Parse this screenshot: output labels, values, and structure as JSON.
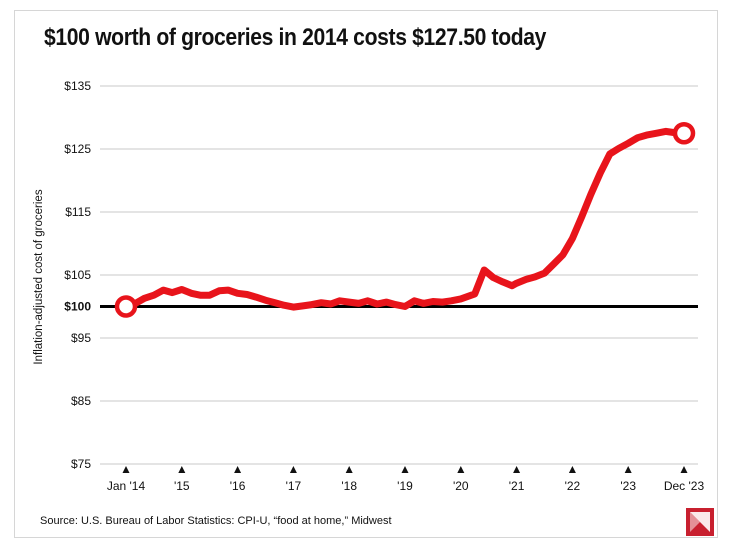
{
  "chart_data": {
    "type": "line",
    "title": "$100 worth of groceries in 2014 costs $127.50 today",
    "ylabel": "Inflation-adjusted cost of groceries",
    "xlabel": "",
    "source": "Source: U.S. Bureau of Labor Statistics: CPI-U, “food at home,” Midwest",
    "ylim": [
      75,
      135
    ],
    "y_ticks": [
      {
        "value": 135,
        "label": "$135",
        "bold": false
      },
      {
        "value": 125,
        "label": "$125",
        "bold": false
      },
      {
        "value": 115,
        "label": "$115",
        "bold": false
      },
      {
        "value": 105,
        "label": "$105",
        "bold": false
      },
      {
        "value": 100,
        "label": "$100",
        "bold": true
      },
      {
        "value": 95,
        "label": "$95",
        "bold": false
      },
      {
        "value": 85,
        "label": "$85",
        "bold": false
      },
      {
        "value": 75,
        "label": "$75",
        "bold": false
      }
    ],
    "x_ticks": [
      {
        "value": 2014.0,
        "label": "Jan '14"
      },
      {
        "value": 2015.0,
        "label": "'15"
      },
      {
        "value": 2016.0,
        "label": "'16"
      },
      {
        "value": 2017.0,
        "label": "'17"
      },
      {
        "value": 2018.0,
        "label": "'18"
      },
      {
        "value": 2019.0,
        "label": "'19"
      },
      {
        "value": 2020.0,
        "label": "'20"
      },
      {
        "value": 2021.0,
        "label": "'21"
      },
      {
        "value": 2022.0,
        "label": "'22"
      },
      {
        "value": 2023.0,
        "label": "'23"
      },
      {
        "value": 2024.0,
        "label": "Dec '23"
      }
    ],
    "xlim": [
      2014.0,
      2024.0
    ],
    "reference_line": 100,
    "line_color": "#e8141b",
    "series": [
      {
        "points": [
          [
            2014.0,
            100.0
          ],
          [
            2014.17,
            100.5
          ],
          [
            2014.33,
            101.3
          ],
          [
            2014.5,
            101.8
          ],
          [
            2014.67,
            102.6
          ],
          [
            2014.83,
            102.2
          ],
          [
            2015.0,
            102.7
          ],
          [
            2015.17,
            102.1
          ],
          [
            2015.33,
            101.8
          ],
          [
            2015.5,
            101.8
          ],
          [
            2015.67,
            102.5
          ],
          [
            2015.83,
            102.6
          ],
          [
            2016.0,
            102.1
          ],
          [
            2016.17,
            101.9
          ],
          [
            2016.33,
            101.5
          ],
          [
            2016.5,
            101.0
          ],
          [
            2016.67,
            100.6
          ],
          [
            2016.83,
            100.2
          ],
          [
            2017.0,
            99.9
          ],
          [
            2017.17,
            100.1
          ],
          [
            2017.33,
            100.3
          ],
          [
            2017.5,
            100.6
          ],
          [
            2017.67,
            100.4
          ],
          [
            2017.83,
            100.9
          ],
          [
            2018.0,
            100.7
          ],
          [
            2018.17,
            100.5
          ],
          [
            2018.33,
            100.9
          ],
          [
            2018.5,
            100.4
          ],
          [
            2018.67,
            100.7
          ],
          [
            2018.83,
            100.3
          ],
          [
            2019.0,
            100.0
          ],
          [
            2019.17,
            100.9
          ],
          [
            2019.33,
            100.5
          ],
          [
            2019.5,
            100.8
          ],
          [
            2019.67,
            100.7
          ],
          [
            2019.83,
            100.9
          ],
          [
            2020.0,
            101.2
          ],
          [
            2020.25,
            102.0
          ],
          [
            2020.42,
            105.8
          ],
          [
            2020.58,
            104.6
          ],
          [
            2020.75,
            103.9
          ],
          [
            2020.92,
            103.3
          ],
          [
            2021.0,
            103.7
          ],
          [
            2021.17,
            104.3
          ],
          [
            2021.33,
            104.7
          ],
          [
            2021.5,
            105.3
          ],
          [
            2021.67,
            106.8
          ],
          [
            2021.83,
            108.2
          ],
          [
            2022.0,
            110.8
          ],
          [
            2022.17,
            114.3
          ],
          [
            2022.33,
            117.8
          ],
          [
            2022.5,
            121.2
          ],
          [
            2022.67,
            124.2
          ],
          [
            2022.83,
            125.1
          ],
          [
            2023.0,
            125.9
          ],
          [
            2023.17,
            126.8
          ],
          [
            2023.33,
            127.2
          ],
          [
            2023.5,
            127.5
          ],
          [
            2023.67,
            127.8
          ],
          [
            2023.83,
            127.6
          ],
          [
            2024.0,
            127.5
          ]
        ]
      }
    ],
    "start_marker": {
      "x": 2014.0,
      "y": 100.0
    },
    "end_marker": {
      "x": 2024.0,
      "y": 127.5
    }
  }
}
